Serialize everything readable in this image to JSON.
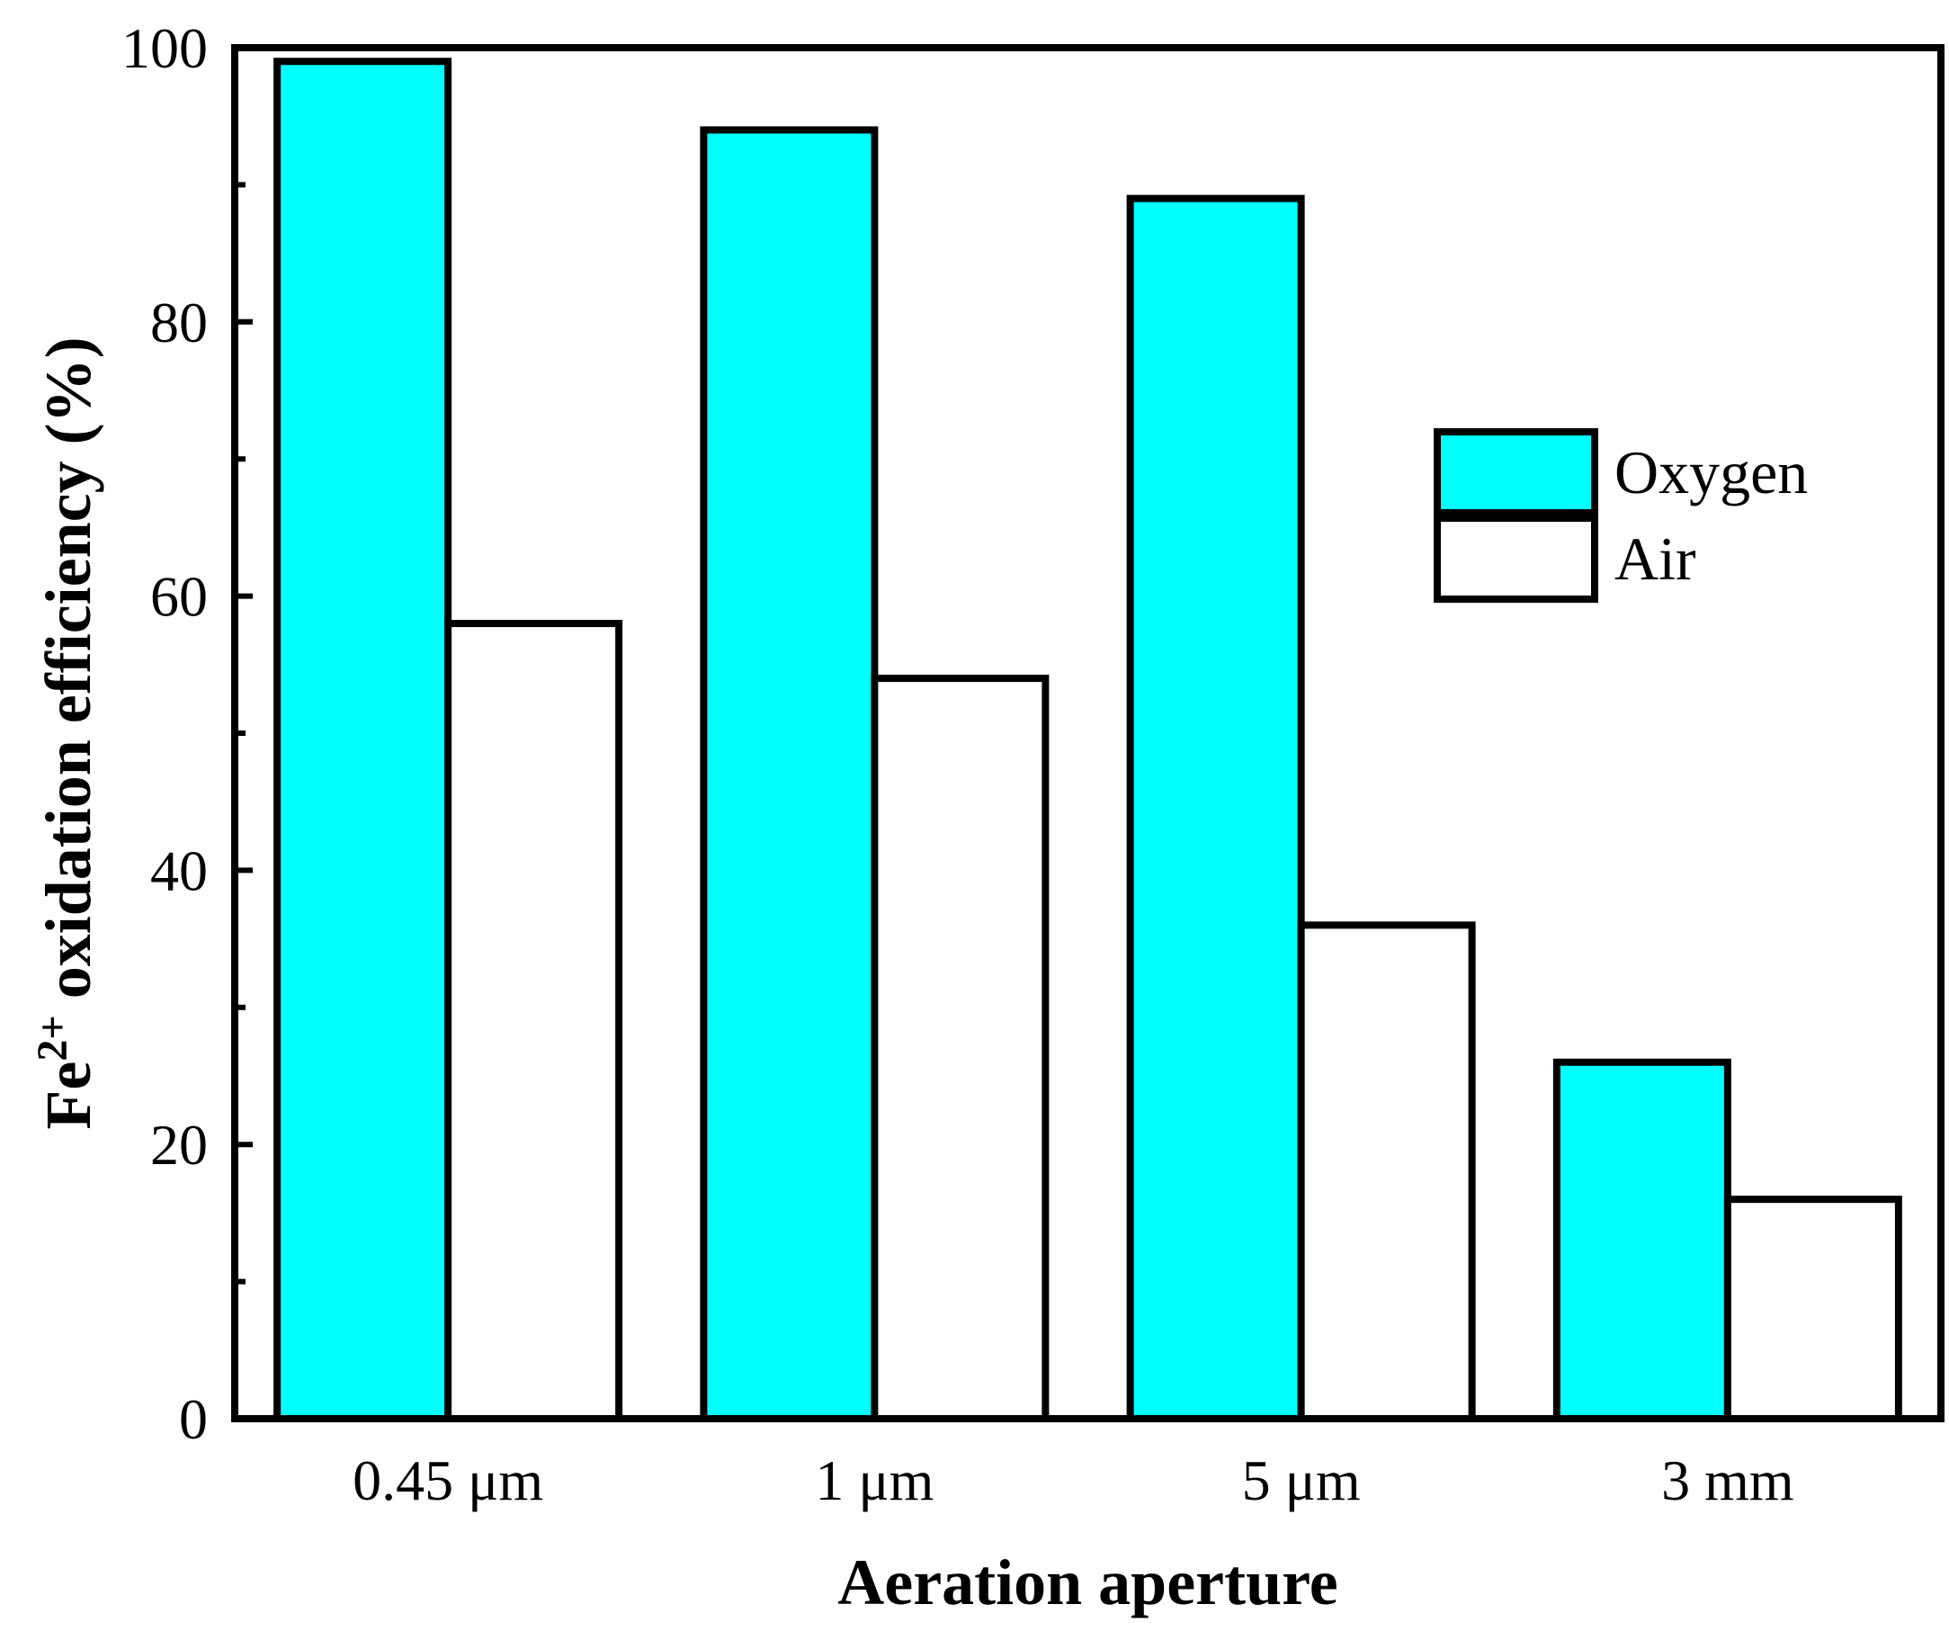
{
  "chart_data": {
    "type": "bar",
    "title": "",
    "xlabel": "Aeration aperture",
    "ylabel": {
      "prefix": "Fe",
      "superscript": "2+",
      "suffix": " oxidation efficiency (%)"
    },
    "categories": [
      "0.45 μm",
      "1 μm",
      "5 μm",
      "3 mm"
    ],
    "series": [
      {
        "name": "Oxygen",
        "values": [
          99,
          94,
          89,
          26
        ],
        "color": "#00FFFF"
      },
      {
        "name": "Air",
        "values": [
          58,
          54,
          36,
          16
        ],
        "color": "#FFFFFF"
      }
    ],
    "ylim": [
      0,
      100
    ],
    "yticks": [
      "0",
      "20",
      "40",
      "60",
      "80",
      "100"
    ],
    "legend_position": "right-middle",
    "grid": false
  }
}
